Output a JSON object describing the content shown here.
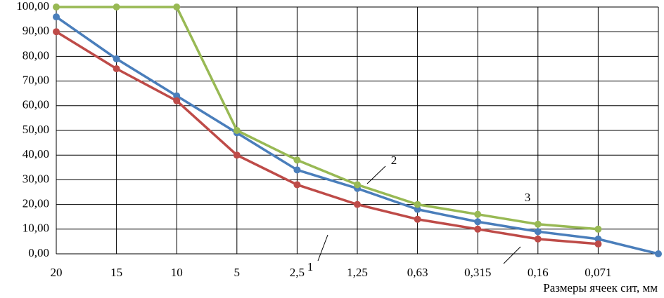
{
  "chart_data": {
    "type": "line",
    "x_label": "Размеры ячеек сит, мм",
    "categories": [
      "20",
      "15",
      "10",
      "5",
      "2,5",
      "1,25",
      "0,63",
      "0,315",
      "0,16",
      "0,071",
      null
    ],
    "series": [
      {
        "color": "#4a7ebb",
        "values": [
          96,
          79,
          64,
          49,
          34,
          26.5,
          18,
          13,
          9,
          6,
          0
        ]
      },
      {
        "color": "#be4b48",
        "values": [
          90,
          75,
          62,
          40,
          28,
          20,
          14,
          10,
          6,
          4,
          null
        ]
      },
      {
        "color": "#98b954",
        "values": [
          100,
          100,
          100,
          50,
          38,
          28,
          20,
          16,
          12,
          10,
          null
        ]
      }
    ],
    "annotations": [
      "1",
      "2",
      "3"
    ],
    "ylim": [
      0,
      100
    ],
    "yticks": [
      {
        "value": 0,
        "label": "0,00"
      },
      {
        "value": 10,
        "label": "10,00"
      },
      {
        "value": 20,
        "label": "20,00"
      },
      {
        "value": 30,
        "label": "30,00"
      },
      {
        "value": 40,
        "label": "40,00"
      },
      {
        "value": 50,
        "label": "50,00"
      },
      {
        "value": 60,
        "label": "60,00"
      },
      {
        "value": 70,
        "label": "70,00"
      },
      {
        "value": 80,
        "label": "80,00"
      },
      {
        "value": 90,
        "label": "90,00"
      },
      {
        "value": 100,
        "label": "100,00"
      }
    ],
    "grid": true
  }
}
